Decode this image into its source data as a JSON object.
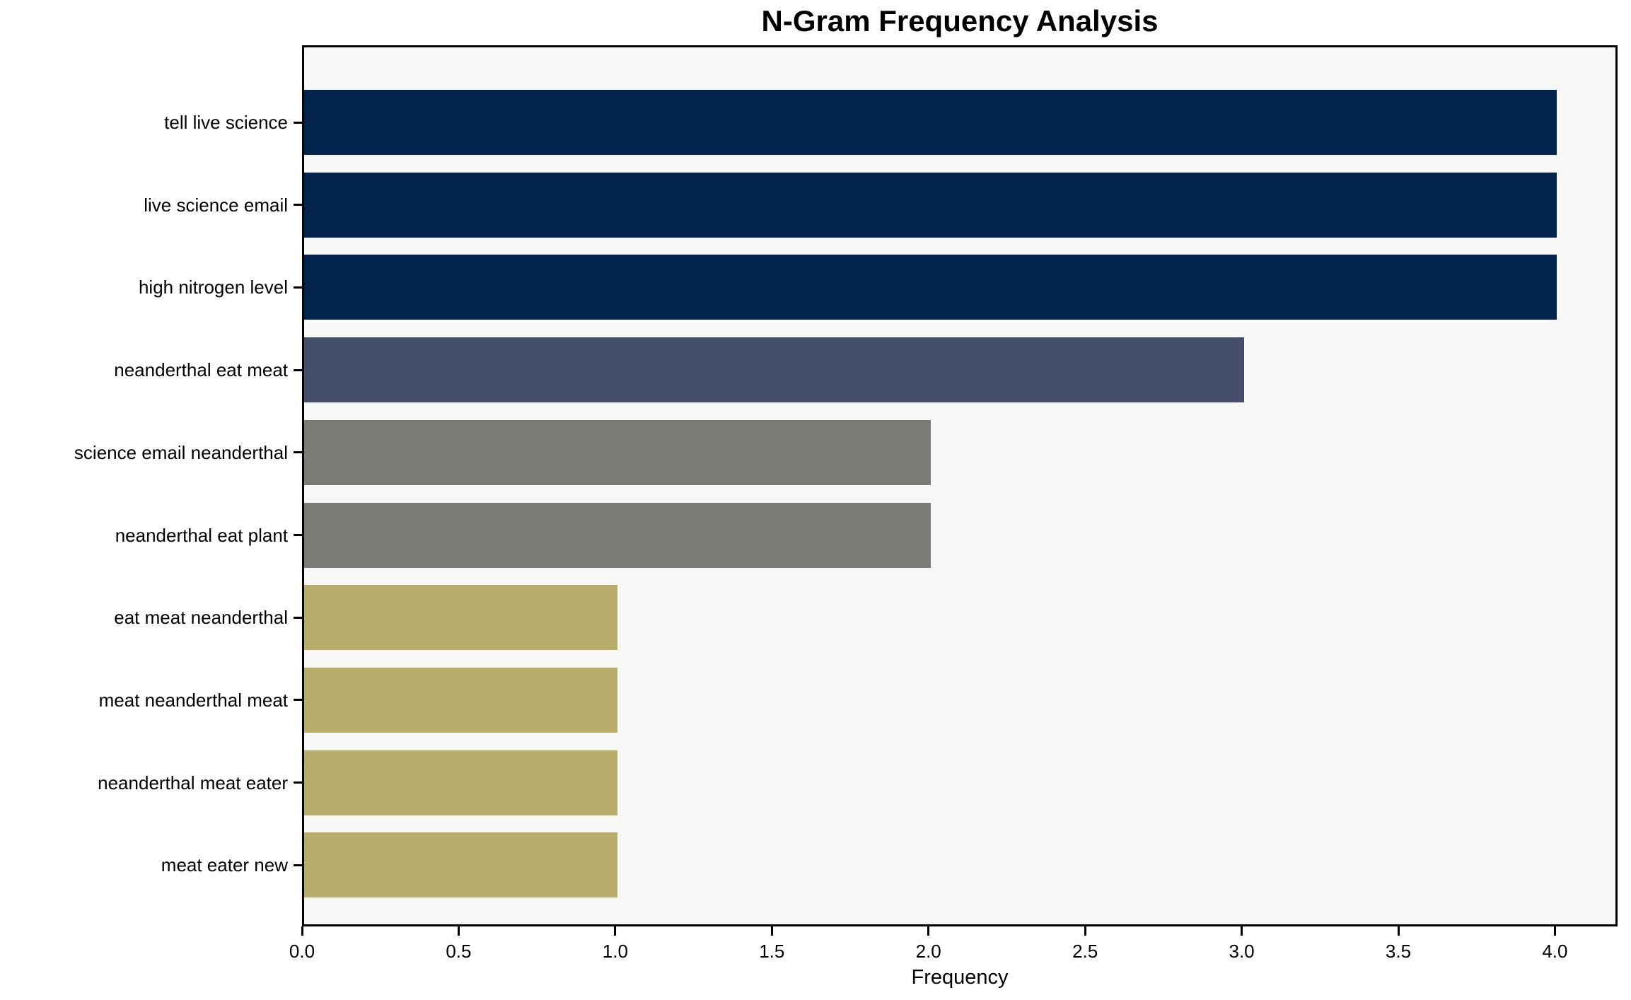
{
  "chart_data": {
    "type": "bar",
    "orientation": "horizontal",
    "title": "N-Gram Frequency Analysis",
    "xlabel": "Frequency",
    "ylabel": "",
    "categories": [
      "tell live science",
      "live science email",
      "high nitrogen level",
      "neanderthal eat meat",
      "science email neanderthal",
      "neanderthal eat plant",
      "eat meat neanderthal",
      "meat neanderthal meat",
      "neanderthal meat eater",
      "meat eater new"
    ],
    "values": [
      4,
      4,
      4,
      3,
      2,
      2,
      1,
      1,
      1,
      1
    ],
    "bar_colors": [
      "#02244e",
      "#02244e",
      "#02244e",
      "#454e6c",
      "#7a7a77",
      "#7a7a77",
      "#b9ad6c",
      "#b9ad6c",
      "#b9ad6c",
      "#b9ad6c"
    ],
    "xlim": [
      0,
      4.2
    ],
    "x_ticks": [
      "0.0",
      "0.5",
      "1.0",
      "1.5",
      "2.0",
      "2.5",
      "3.0",
      "3.5",
      "4.0"
    ],
    "grid": false,
    "legend": "none",
    "plot_background": "#f7f7f6",
    "figure_background": "#ffffff",
    "axis_color": "#000000",
    "text_color": "#000000"
  }
}
